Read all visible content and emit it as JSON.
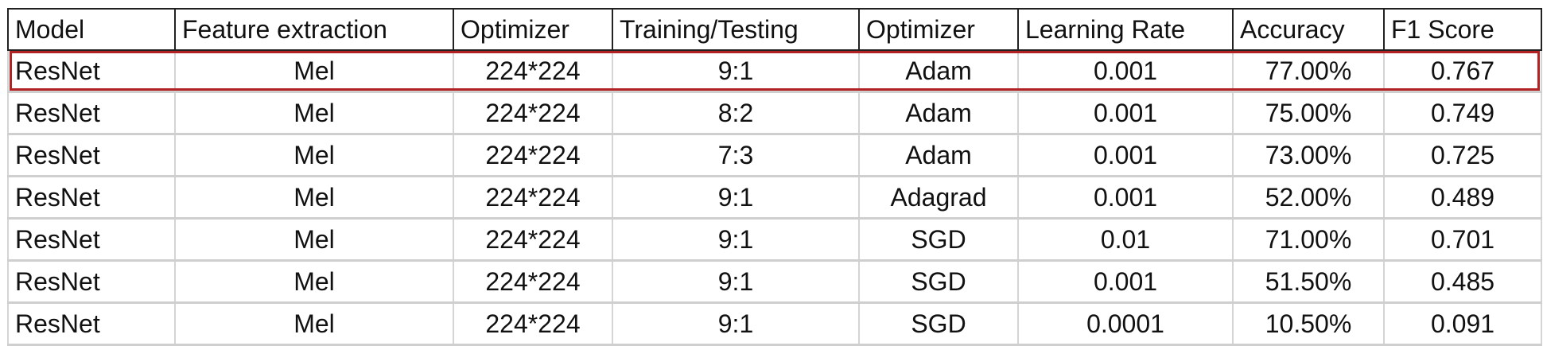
{
  "table": {
    "headers": [
      "Model",
      "Feature extraction",
      "Optimizer",
      "Training/Testing",
      "Optimizer",
      "Learning Rate",
      "Accuracy",
      "F1 Score"
    ],
    "rows": [
      [
        "ResNet",
        "Mel",
        "224*224",
        "9:1",
        "Adam",
        "0.001",
        "77.00%",
        "0.767"
      ],
      [
        "ResNet",
        "Mel",
        "224*224",
        "8:2",
        "Adam",
        "0.001",
        "75.00%",
        "0.749"
      ],
      [
        "ResNet",
        "Mel",
        "224*224",
        "7:3",
        "Adam",
        "0.001",
        "73.00%",
        "0.725"
      ],
      [
        "ResNet",
        "Mel",
        "224*224",
        "9:1",
        "Adagrad",
        "0.001",
        "52.00%",
        "0.489"
      ],
      [
        "ResNet",
        "Mel",
        "224*224",
        "9:1",
        "SGD",
        "0.01",
        "71.00%",
        "0.701"
      ],
      [
        "ResNet",
        "Mel",
        "224*224",
        "9:1",
        "SGD",
        "0.001",
        "51.50%",
        "0.485"
      ],
      [
        "ResNet",
        "Mel",
        "224*224",
        "9:1",
        "SGD",
        "0.0001",
        "10.50%",
        "0.091"
      ]
    ],
    "highlighted_row": 0,
    "highlight_color": "#b22222"
  }
}
